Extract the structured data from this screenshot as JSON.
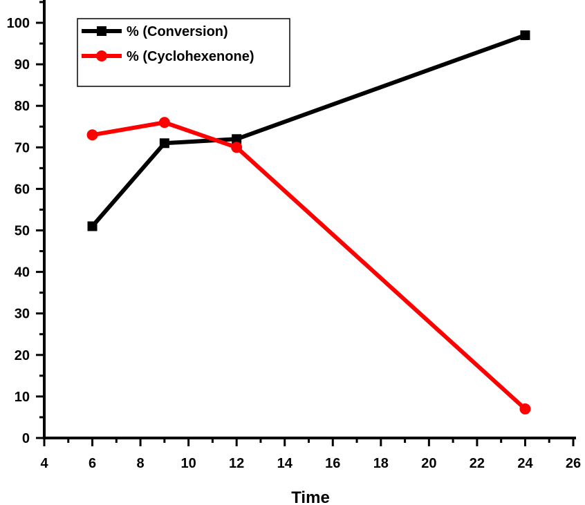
{
  "chart_data": {
    "type": "line",
    "title": "",
    "xlabel": "Time",
    "ylabel": "",
    "xlim": [
      4,
      26
    ],
    "ylim": [
      0,
      105
    ],
    "x_ticks": [
      4,
      6,
      8,
      10,
      12,
      14,
      16,
      18,
      20,
      22,
      24,
      26
    ],
    "y_ticks": [
      0,
      10,
      20,
      30,
      40,
      50,
      60,
      70,
      80,
      90,
      100
    ],
    "grid": false,
    "legend_position": "top-left",
    "series": [
      {
        "name": "% (Conversion)",
        "color": "#000000",
        "marker": "square",
        "x": [
          6,
          9,
          12,
          24
        ],
        "y": [
          51,
          71,
          72,
          97
        ]
      },
      {
        "name": "% (Cyclohexenone)",
        "color": "#ff0000",
        "marker": "circle",
        "x": [
          6,
          9,
          12,
          24
        ],
        "y": [
          73,
          76,
          70,
          7
        ]
      }
    ]
  }
}
